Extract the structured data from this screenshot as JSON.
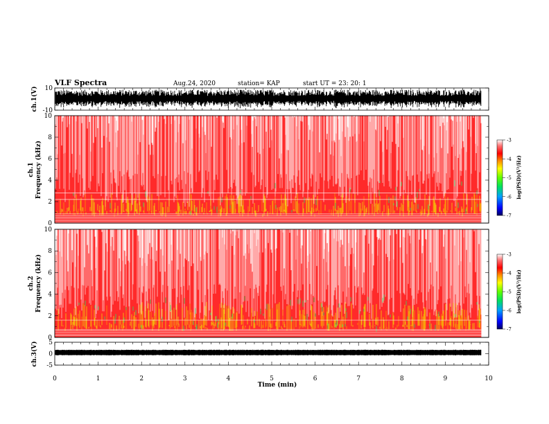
{
  "header": {
    "title": "VLF Spectra",
    "date": "Aug.24, 2020",
    "station": "station= KAP",
    "start": "start  UT  =   23: 20: 1"
  },
  "chart_data": [
    {
      "type": "line",
      "panel": "ch1-waveform",
      "ylabel": "ch.1(V)",
      "ylim": [
        -10,
        10
      ],
      "ytick_labels": [
        "10",
        "-10"
      ],
      "xlim": [
        0,
        10
      ],
      "description_level": "dense oscillating signal filling roughly -9 to 9 V"
    },
    {
      "type": "heatmap",
      "panel": "ch1-spectrogram",
      "ylabel": "ch.1\nFrequency (kHz)",
      "ylabel_lines": [
        "ch.1",
        "Frequency (kHz)"
      ],
      "ylim": [
        0,
        10
      ],
      "ytick_labels": [
        "0",
        "2",
        "4",
        "6",
        "8",
        "10"
      ],
      "xlim": [
        0,
        10
      ],
      "data_end_min": 9.83,
      "colorbar": {
        "label": "log(PSD)(V²/Hz)",
        "ticks": [
          "-3",
          "-4",
          "-5",
          "-6",
          "-7"
        ],
        "range": [
          -7,
          -3
        ],
        "colors": [
          "#000080",
          "#0000ff",
          "#00a0ff",
          "#00e060",
          "#40ff00",
          "#ffff00",
          "#ff9000",
          "#ff0000",
          "#ff6060",
          "#ffffff"
        ]
      }
    },
    {
      "type": "heatmap",
      "panel": "ch2-spectrogram",
      "ylabel": "ch.2\nFrequency (kHz)",
      "ylabel_lines": [
        "ch.2",
        "Frequency (kHz)"
      ],
      "ylim": [
        0,
        10
      ],
      "ytick_labels": [
        "0",
        "2",
        "4",
        "6",
        "8",
        "10"
      ],
      "xlim": [
        0,
        10
      ],
      "data_end_min": 9.83,
      "colorbar": {
        "label": "log(PSD)(V²/Hz)",
        "ticks": [
          "-3",
          "-4",
          "-5",
          "-6",
          "-7"
        ],
        "range": [
          -7,
          -3
        ],
        "colors": [
          "#000080",
          "#0000ff",
          "#00a0ff",
          "#00e060",
          "#40ff00",
          "#ffff00",
          "#ff9000",
          "#ff0000",
          "#ff6060",
          "#ffffff"
        ]
      }
    },
    {
      "type": "line",
      "panel": "ch3-waveform",
      "ylabel": "ch.3(V)",
      "ylim": [
        -5,
        5
      ],
      "ytick_labels": [
        "5",
        "0",
        "-5"
      ],
      "xlim": [
        0,
        10
      ],
      "description_level": "narrow band around 0 V"
    }
  ],
  "xaxis": {
    "label": "Time  (min)",
    "ticks": [
      "0",
      "1",
      "2",
      "3",
      "4",
      "5",
      "6",
      "7",
      "8",
      "9",
      "10"
    ],
    "range": [
      0,
      10
    ]
  }
}
